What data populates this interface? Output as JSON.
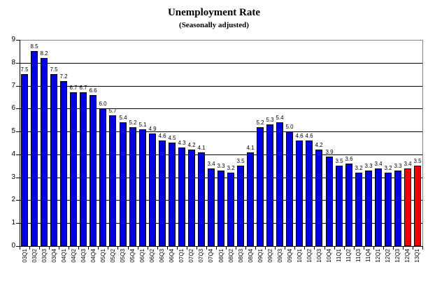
{
  "chart_data": {
    "type": "bar",
    "title": "Unemployment Rate",
    "subtitle": "(Seasonally adjusted)",
    "xlabel": "",
    "ylabel": "",
    "ylim": [
      0,
      9
    ],
    "yticks": [
      0,
      1,
      2,
      3,
      4,
      5,
      6,
      7,
      8,
      9
    ],
    "grid": true,
    "legend": false,
    "data_labels": true,
    "bar_color_default": "#0000E0",
    "bar_color_highlight": "#F00000",
    "highlighted_categories": [
      "12Q4",
      "13Q1"
    ],
    "categories": [
      "03Q1",
      "03Q2",
      "03Q3",
      "03Q4",
      "04Q1",
      "04Q2",
      "04Q3",
      "04Q4",
      "05Q1",
      "05Q2",
      "05Q3",
      "05Q4",
      "06Q1",
      "06Q2",
      "06Q3",
      "06Q4",
      "07Q1",
      "07Q2",
      "07Q3",
      "07Q4",
      "08Q1",
      "08Q2",
      "08Q3",
      "08Q4",
      "09Q1",
      "09Q2",
      "09Q3",
      "09Q4",
      "10Q1",
      "10Q2",
      "10Q3",
      "10Q4",
      "11Q1",
      "11Q2",
      "11Q3",
      "11Q4",
      "12Q1",
      "12Q2",
      "12Q3",
      "12Q4",
      "13Q1"
    ],
    "values": [
      7.5,
      8.5,
      8.2,
      7.5,
      7.2,
      6.7,
      6.7,
      6.6,
      6.0,
      5.7,
      5.4,
      5.2,
      5.1,
      4.9,
      4.6,
      4.5,
      4.3,
      4.2,
      4.1,
      3.4,
      3.3,
      3.2,
      3.5,
      4.1,
      5.2,
      5.3,
      5.4,
      5.0,
      4.6,
      4.6,
      4.2,
      3.9,
      3.5,
      3.6,
      3.2,
      3.3,
      3.4,
      3.2,
      3.3,
      3.4,
      3.5
    ]
  }
}
